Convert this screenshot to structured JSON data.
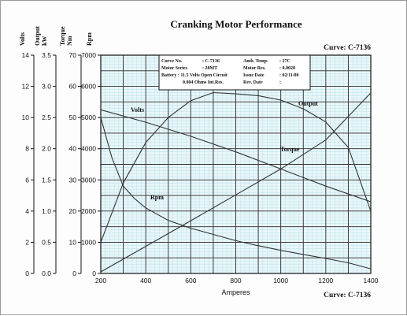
{
  "header": {
    "title": "Cranking Motor Performance",
    "curve_top": "Curve: C-7136",
    "curve_bottom": "Curve: C-7136"
  },
  "info_box": {
    "rows": [
      [
        "Curve No.",
        ": C-7136",
        "Amb. Temp.",
        ": 27C"
      ],
      [
        "Motor Series",
        ": 28MT",
        "Motor Res.",
        ": 0.0028"
      ],
      [
        "Battery : 11.5 Volts Open Circuit",
        "",
        "Issue Date",
        ": 02/11/08"
      ],
      [
        "0.004 Ohms Int.Res.",
        "",
        "Rev. Date",
        ":"
      ]
    ]
  },
  "axes": {
    "x_label": "Amperes",
    "x_ticks": [
      "200",
      "400",
      "600",
      "800",
      "1000",
      "1200",
      "1400"
    ],
    "left_axes": [
      {
        "header": [
          "Volts"
        ],
        "ticks": [
          "0",
          "2",
          "4",
          "6",
          "8",
          "10",
          "12",
          "14"
        ]
      },
      {
        "header": [
          "Output",
          "kW"
        ],
        "ticks": [
          "0.0",
          "0.5",
          "1.0",
          "1.5",
          "2.0",
          "2.5",
          "3.0",
          "3.5"
        ]
      },
      {
        "header": [
          "Torque",
          "Nm"
        ],
        "ticks": [
          "0",
          "10",
          "20",
          "30",
          "40",
          "50",
          "60",
          "70"
        ]
      },
      {
        "header": [
          "Rpm"
        ],
        "ticks": [
          "0",
          "1000",
          "2000",
          "3000",
          "4000",
          "5000",
          "6000",
          "7000"
        ]
      }
    ]
  },
  "colors": {
    "grid_fine": "#b8e2ea",
    "grid_major": "#2a2a2a",
    "plot_bg": "#e9f6f9",
    "curve": "#333333"
  },
  "chart_data": {
    "type": "line",
    "title": "Cranking Motor Performance",
    "xlabel": "Amperes",
    "xlim": [
      200,
      1400
    ],
    "ylim_rpm": [
      0,
      7000
    ],
    "grid": true,
    "series": [
      {
        "name": "Volts",
        "unit": "V",
        "x": [
          200,
          400,
          600,
          800,
          1000,
          1200,
          1400
        ],
        "y": [
          10.5,
          9.7,
          8.8,
          7.8,
          6.7,
          5.6,
          4.6
        ]
      },
      {
        "name": "Output",
        "unit": "kW",
        "x": [
          200,
          300,
          400,
          500,
          600,
          700,
          800,
          900,
          1000,
          1100,
          1200,
          1300,
          1400
        ],
        "y": [
          0.5,
          1.45,
          2.1,
          2.5,
          2.77,
          2.9,
          2.88,
          2.85,
          2.78,
          2.64,
          2.43,
          2.02,
          1.0
        ]
      },
      {
        "name": "Torque",
        "unit": "Nm",
        "x": [
          200,
          400,
          600,
          800,
          1000,
          1200,
          1400
        ],
        "y": [
          0.5,
          8.7,
          16.9,
          25.2,
          33.5,
          42.8,
          57.9
        ]
      },
      {
        "name": "Rpm",
        "unit": "rpm",
        "x": [
          200,
          250,
          300,
          350,
          400,
          500,
          600,
          700,
          800,
          900,
          1000,
          1100,
          1200,
          1300,
          1400
        ],
        "y": [
          5000,
          3700,
          2800,
          2400,
          2100,
          1700,
          1450,
          1250,
          1050,
          890,
          740,
          610,
          480,
          340,
          150
        ]
      }
    ],
    "series_labels": [
      "Volts",
      "Output",
      "Torque",
      "Rpm"
    ]
  }
}
